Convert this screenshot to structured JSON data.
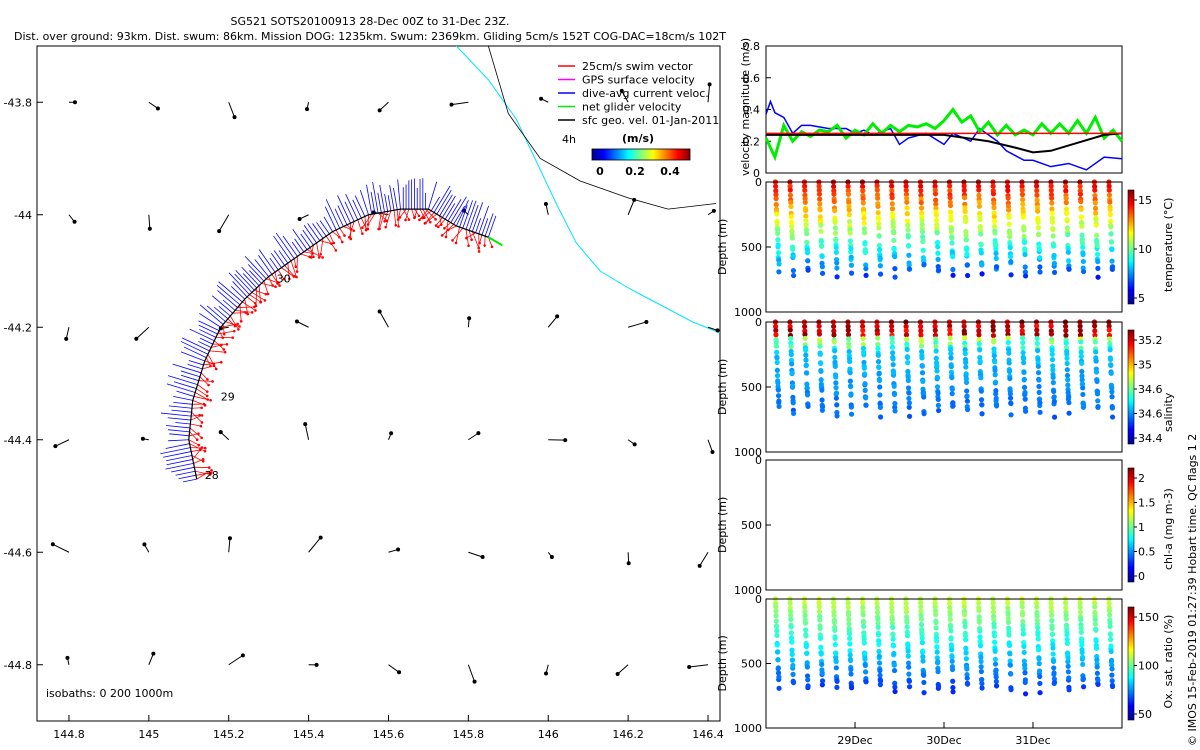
{
  "header": {
    "title": "SG521 SOTS20100913 28-Dec 00Z to 31-Dec 23Z.",
    "subtitle": "Dist. over ground: 93km. Dist. swum: 86km. Mission DOG: 1235km. Swum: 2369km. Gliding 5cm/s 152T COG-DAC=18cm/s 102T"
  },
  "copyright": "© IMOS 15-Feb-2019 01:27:39 Hobart time. QC flags 1 2",
  "colors": {
    "swim": "#ff0000",
    "gps": "#ff00ff",
    "dac": "#0000ff",
    "net": "#00ee00",
    "sfc": "#000000",
    "isobath": "#00e5ff",
    "track": "#000000"
  },
  "chart_data": [
    {
      "type": "scatter",
      "name": "map",
      "xlim": [
        144.72,
        146.43
      ],
      "ylim": [
        -44.9,
        -43.7
      ],
      "xticks": [
        "144.8",
        "145",
        "145.2",
        "145.4",
        "145.6",
        "145.8",
        "146",
        "146.2",
        "146.4"
      ],
      "yticks": [
        "-43.8",
        "-44",
        "-44.2",
        "-44.4",
        "-44.6",
        "-44.8"
      ],
      "legend": {
        "placement": "top-right",
        "entries": [
          "25cm/s swim vector",
          "GPS surface velocity",
          "dive-avg current veloc.",
          "net glider velocity",
          "sfc geo. vel. 01-Jan-2011"
        ],
        "scale_label": "4h",
        "colorbar_title": "(m/s)",
        "colorbar_ticks": [
          "0",
          "0.2",
          "0.4"
        ]
      },
      "isobath_note": "isobaths: 0   200   1000m",
      "track_labels": [
        "28",
        "29",
        "30"
      ],
      "track": [
        [
          145.12,
          -44.47
        ],
        [
          145.1,
          -44.4
        ],
        [
          145.11,
          -44.33
        ],
        [
          145.14,
          -44.26
        ],
        [
          145.18,
          -44.2
        ],
        [
          145.24,
          -44.15
        ],
        [
          145.3,
          -44.11
        ],
        [
          145.38,
          -44.07
        ],
        [
          145.46,
          -44.03
        ],
        [
          145.55,
          -44.0
        ],
        [
          145.63,
          -43.99
        ],
        [
          145.7,
          -43.99
        ],
        [
          145.77,
          -44.02
        ],
        [
          145.85,
          -44.04
        ]
      ]
    },
    {
      "type": "line",
      "name": "velocity",
      "ylabel": "velocity magnitude (m/s)",
      "ylim": [
        0,
        0.8
      ],
      "yticks": [
        "0",
        "0.2",
        "0.4",
        "0.6",
        "0.8"
      ],
      "xlim": [
        0,
        4
      ],
      "xticks": [
        {
          "x": 1,
          "label": "29Dec"
        },
        {
          "x": 2,
          "label": "30Dec"
        },
        {
          "x": 3,
          "label": "31Dec"
        }
      ],
      "series": [
        {
          "color": "#0000ff",
          "x": [
            0,
            0.05,
            0.1,
            0.2,
            0.3,
            0.4,
            0.5,
            0.7,
            0.9,
            1.0,
            1.1,
            1.2,
            1.4,
            1.5,
            1.6,
            1.8,
            2.0,
            2.1,
            2.3,
            2.4,
            2.6,
            2.7,
            2.9,
            3.0,
            3.2,
            3.4,
            3.6,
            3.8,
            4.0
          ],
          "values": [
            0.37,
            0.45,
            0.38,
            0.35,
            0.25,
            0.3,
            0.3,
            0.28,
            0.28,
            0.25,
            0.27,
            0.24,
            0.28,
            0.18,
            0.22,
            0.25,
            0.18,
            0.25,
            0.2,
            0.28,
            0.2,
            0.14,
            0.08,
            0.08,
            0.04,
            0.06,
            0.02,
            0.1,
            0.09
          ]
        },
        {
          "color": "#00ee00",
          "x": [
            0,
            0.1,
            0.2,
            0.3,
            0.4,
            0.5,
            0.6,
            0.7,
            0.8,
            0.9,
            1.0,
            1.1,
            1.2,
            1.3,
            1.4,
            1.5,
            1.6,
            1.7,
            1.8,
            1.9,
            2.0,
            2.1,
            2.2,
            2.3,
            2.4,
            2.5,
            2.6,
            2.7,
            2.8,
            2.9,
            3.0,
            3.1,
            3.2,
            3.3,
            3.4,
            3.5,
            3.6,
            3.7,
            3.8,
            3.9,
            4.0
          ],
          "values": [
            0.22,
            0.1,
            0.3,
            0.2,
            0.26,
            0.23,
            0.27,
            0.26,
            0.3,
            0.22,
            0.27,
            0.24,
            0.31,
            0.25,
            0.3,
            0.26,
            0.3,
            0.29,
            0.31,
            0.28,
            0.33,
            0.4,
            0.32,
            0.36,
            0.26,
            0.32,
            0.24,
            0.3,
            0.24,
            0.27,
            0.24,
            0.31,
            0.25,
            0.31,
            0.25,
            0.33,
            0.25,
            0.35,
            0.22,
            0.27,
            0.2
          ]
        },
        {
          "color": "#000000",
          "x": [
            0,
            0.5,
            1.0,
            1.5,
            2.0,
            2.5,
            2.8,
            3.0,
            3.2,
            3.5,
            3.8,
            4.0
          ],
          "values": [
            0.24,
            0.24,
            0.24,
            0.24,
            0.24,
            0.2,
            0.16,
            0.13,
            0.14,
            0.19,
            0.24,
            0.25
          ]
        },
        {
          "color": "#ff0000",
          "x": [
            0,
            4
          ],
          "values": [
            0.25,
            0.25
          ]
        }
      ]
    },
    {
      "type": "scatter",
      "name": "temperature",
      "ylabel": "Depth (m)",
      "ylim": [
        1000,
        0
      ],
      "yticks": [
        "0",
        "500",
        "1000"
      ],
      "colorbar_label": "temperature (°C)",
      "colorbar_ticks": [
        "5",
        "10",
        "15"
      ],
      "clim": [
        3,
        18
      ],
      "dives": 24,
      "max_depth": 700
    },
    {
      "type": "scatter",
      "name": "salinity",
      "ylabel": "Depth (m)",
      "ylim": [
        1000,
        0
      ],
      "yticks": [
        "0",
        "500",
        "1000"
      ],
      "colorbar_label": "salinity",
      "colorbar_ticks": [
        "34.4",
        "34.6",
        "34.6",
        "35",
        "35.2"
      ],
      "dives": 24,
      "max_depth": 700
    },
    {
      "type": "scatter",
      "name": "chl",
      "ylabel": "Depth (m)",
      "ylim": [
        1000,
        0
      ],
      "yticks": [
        "0",
        "500",
        "1000"
      ],
      "colorbar_label": "chl-a (mg m-3)",
      "colorbar_ticks": [
        "0",
        "0.5",
        "1",
        "1.5",
        "2"
      ],
      "clim": [
        0,
        2
      ]
    },
    {
      "type": "scatter",
      "name": "oxygen",
      "ylabel": "Depth (m)",
      "ylim": [
        1000,
        0
      ],
      "yticks": [
        "0",
        "500",
        "1000"
      ],
      "colorbar_label": "Ox. sat. ratio (%)",
      "colorbar_ticks": [
        "50",
        "100",
        "150"
      ],
      "clim": [
        20,
        175
      ],
      "xticks": [
        {
          "x": 1,
          "label": "29Dec"
        },
        {
          "x": 2,
          "label": "30Dec"
        },
        {
          "x": 3,
          "label": "31Dec"
        }
      ],
      "dives": 24,
      "max_depth": 700
    }
  ]
}
